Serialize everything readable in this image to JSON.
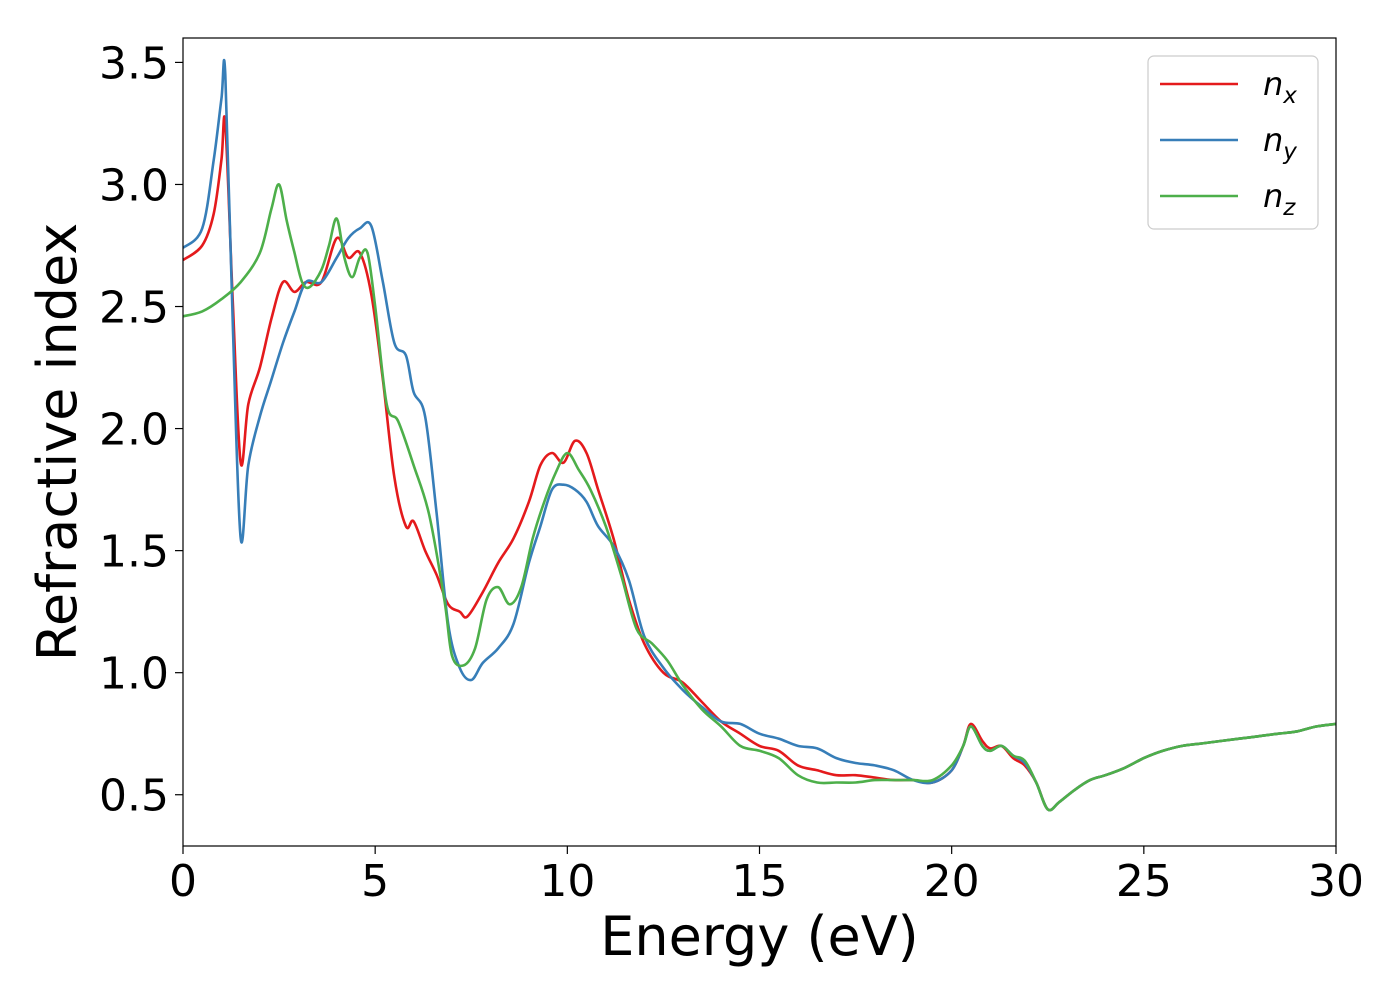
{
  "chart_data": {
    "type": "line",
    "xlabel": "Energy (eV)",
    "ylabel": "Refractive index",
    "xlim": [
      0,
      30
    ],
    "ylim": [
      0.29,
      3.6
    ],
    "xticks": [
      0,
      5,
      10,
      15,
      20,
      25,
      30
    ],
    "xtick_labels": [
      "0",
      "5",
      "10",
      "15",
      "20",
      "25",
      "30"
    ],
    "yticks": [
      0.5,
      1.0,
      1.5,
      2.0,
      2.5,
      3.0,
      3.5
    ],
    "ytick_labels": [
      "0.5",
      "1.0",
      "1.5",
      "2.0",
      "2.5",
      "3.0",
      "3.5"
    ],
    "grid": false,
    "legend_position": "top-right",
    "series": [
      {
        "name": "n_x",
        "label_main": "n",
        "label_sub": "x",
        "color": "#e41a1c",
        "x": [
          0,
          0.5,
          0.8,
          1.0,
          1.1,
          1.3,
          1.5,
          1.7,
          2.0,
          2.3,
          2.6,
          2.9,
          3.2,
          3.6,
          4.0,
          4.3,
          4.6,
          4.9,
          5.2,
          5.5,
          5.8,
          6.0,
          6.3,
          6.6,
          6.9,
          7.2,
          7.4,
          7.8,
          8.2,
          8.6,
          9.0,
          9.3,
          9.6,
          9.9,
          10.2,
          10.5,
          10.8,
          11.2,
          11.6,
          12.0,
          12.5,
          13.0,
          13.5,
          14.0,
          14.5,
          15.0,
          15.5,
          16.0,
          16.5,
          17.0,
          17.5,
          18.0,
          18.5,
          19.0,
          19.5,
          20.0,
          20.3,
          20.5,
          20.8,
          21.0,
          21.3,
          21.6,
          21.9,
          22.2,
          22.5,
          22.8,
          23.2,
          23.6,
          24.0,
          24.5,
          25.0,
          25.5,
          26.0,
          26.5,
          27.0,
          27.5,
          28.0,
          28.5,
          29.0,
          29.5,
          30.0
        ],
        "y": [
          2.69,
          2.75,
          2.88,
          3.1,
          3.25,
          2.5,
          1.86,
          2.1,
          2.25,
          2.45,
          2.6,
          2.56,
          2.6,
          2.6,
          2.78,
          2.7,
          2.72,
          2.55,
          2.2,
          1.8,
          1.6,
          1.62,
          1.5,
          1.4,
          1.28,
          1.25,
          1.23,
          1.33,
          1.45,
          1.55,
          1.7,
          1.85,
          1.9,
          1.86,
          1.95,
          1.9,
          1.75,
          1.55,
          1.3,
          1.12,
          1.0,
          0.96,
          0.88,
          0.8,
          0.75,
          0.7,
          0.68,
          0.62,
          0.6,
          0.58,
          0.58,
          0.57,
          0.56,
          0.56,
          0.55,
          0.6,
          0.7,
          0.79,
          0.72,
          0.69,
          0.7,
          0.65,
          0.62,
          0.55,
          0.44,
          0.47,
          0.52,
          0.56,
          0.58,
          0.61,
          0.65,
          0.68,
          0.7,
          0.71,
          0.72,
          0.73,
          0.74,
          0.75,
          0.76,
          0.78,
          0.79
        ]
      },
      {
        "name": "n_y",
        "label_main": "n",
        "label_sub": "y",
        "color": "#377eb8",
        "x": [
          0,
          0.5,
          0.8,
          1.0,
          1.1,
          1.3,
          1.5,
          1.7,
          2.0,
          2.3,
          2.6,
          2.9,
          3.2,
          3.6,
          4.0,
          4.3,
          4.6,
          4.9,
          5.2,
          5.5,
          5.8,
          6.0,
          6.3,
          6.6,
          6.9,
          7.2,
          7.5,
          7.8,
          8.2,
          8.6,
          9.0,
          9.3,
          9.6,
          9.9,
          10.2,
          10.5,
          10.8,
          11.2,
          11.6,
          12.0,
          12.5,
          13.0,
          13.5,
          14.0,
          14.5,
          15.0,
          15.5,
          16.0,
          16.5,
          17.0,
          17.5,
          18.0,
          18.5,
          19.0,
          19.5,
          20.0,
          20.3,
          20.5,
          20.8,
          21.0,
          21.3,
          21.6,
          21.9,
          22.2,
          22.5,
          22.8,
          23.2,
          23.6,
          24.0,
          24.5,
          25.0,
          25.5,
          26.0,
          26.5,
          27.0,
          27.5,
          28.0,
          28.5,
          29.0,
          29.5,
          30.0
        ],
        "y": [
          2.74,
          2.82,
          3.1,
          3.35,
          3.45,
          2.4,
          1.55,
          1.85,
          2.05,
          2.2,
          2.35,
          2.48,
          2.6,
          2.6,
          2.7,
          2.78,
          2.82,
          2.83,
          2.6,
          2.35,
          2.3,
          2.15,
          2.05,
          1.65,
          1.2,
          1.02,
          0.97,
          1.04,
          1.1,
          1.2,
          1.45,
          1.6,
          1.75,
          1.77,
          1.75,
          1.7,
          1.6,
          1.52,
          1.38,
          1.15,
          1.02,
          0.93,
          0.86,
          0.8,
          0.79,
          0.75,
          0.73,
          0.7,
          0.69,
          0.65,
          0.63,
          0.62,
          0.6,
          0.56,
          0.55,
          0.6,
          0.7,
          0.78,
          0.7,
          0.68,
          0.7,
          0.66,
          0.63,
          0.55,
          0.44,
          0.47,
          0.52,
          0.56,
          0.58,
          0.61,
          0.65,
          0.68,
          0.7,
          0.71,
          0.72,
          0.73,
          0.74,
          0.75,
          0.76,
          0.78,
          0.79
        ]
      },
      {
        "name": "n_z",
        "label_main": "n",
        "label_sub": "z",
        "color": "#4daf4a",
        "x": [
          0,
          0.5,
          1.0,
          1.5,
          2.0,
          2.3,
          2.5,
          2.7,
          2.9,
          3.1,
          3.3,
          3.6,
          3.8,
          4.0,
          4.2,
          4.4,
          4.6,
          4.8,
          5.0,
          5.3,
          5.6,
          6.0,
          6.4,
          6.8,
          7.0,
          7.3,
          7.6,
          7.9,
          8.2,
          8.5,
          8.8,
          9.1,
          9.4,
          9.7,
          10.0,
          10.3,
          10.6,
          11.0,
          11.4,
          11.8,
          12.2,
          12.6,
          13.0,
          13.5,
          14.0,
          14.5,
          15.0,
          15.5,
          16.0,
          16.5,
          17.0,
          17.5,
          18.0,
          18.5,
          19.0,
          19.5,
          20.0,
          20.3,
          20.5,
          20.8,
          21.0,
          21.3,
          21.6,
          21.9,
          22.2,
          22.5,
          22.8,
          23.2,
          23.6,
          24.0,
          24.5,
          25.0,
          25.5,
          26.0,
          26.5,
          27.0,
          27.5,
          28.0,
          28.5,
          29.0,
          29.5,
          30.0
        ],
        "y": [
          2.46,
          2.48,
          2.53,
          2.6,
          2.72,
          2.9,
          3.0,
          2.85,
          2.72,
          2.6,
          2.58,
          2.65,
          2.75,
          2.86,
          2.7,
          2.62,
          2.7,
          2.72,
          2.5,
          2.1,
          2.03,
          1.85,
          1.65,
          1.3,
          1.07,
          1.03,
          1.1,
          1.3,
          1.35,
          1.28,
          1.35,
          1.55,
          1.7,
          1.82,
          1.9,
          1.83,
          1.75,
          1.6,
          1.4,
          1.18,
          1.12,
          1.05,
          0.95,
          0.85,
          0.78,
          0.7,
          0.68,
          0.65,
          0.58,
          0.55,
          0.55,
          0.55,
          0.56,
          0.56,
          0.56,
          0.56,
          0.62,
          0.7,
          0.78,
          0.7,
          0.68,
          0.7,
          0.66,
          0.64,
          0.55,
          0.44,
          0.47,
          0.52,
          0.56,
          0.58,
          0.61,
          0.65,
          0.68,
          0.7,
          0.71,
          0.72,
          0.73,
          0.74,
          0.75,
          0.76,
          0.78,
          0.79
        ]
      }
    ]
  }
}
